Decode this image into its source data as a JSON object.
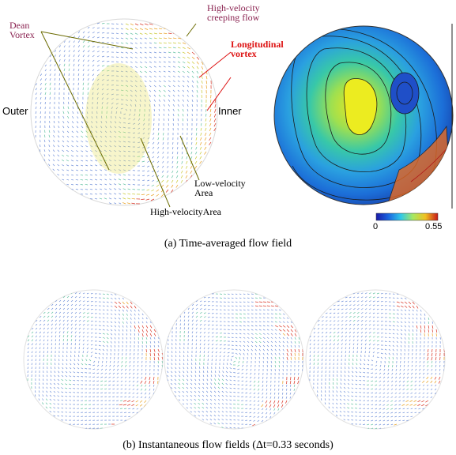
{
  "panel_a": {
    "annotations": {
      "dean_vortex": "Dean\nVortex",
      "high_velocity_creeping_flow": "High-velocity\ncreeping flow",
      "longitudinal_vortex": "Longitudinal\nvortex",
      "outer": "Outer",
      "inner": "Inner",
      "low_velocity_area": "Low-velocity\nArea",
      "high_velocity_area": "High-velocityArea"
    },
    "colorbar": {
      "min_label": "0",
      "max_label": "0.55"
    },
    "caption": "(a) Time-averaged flow field"
  },
  "panel_b": {
    "caption": "(b) Instantaneous flow fields (Δt=0.33 seconds)"
  },
  "colors": {
    "accent_purple": "#8a2250",
    "accent_red": "#dd1111",
    "vector_blue": "#6f8fd8"
  }
}
